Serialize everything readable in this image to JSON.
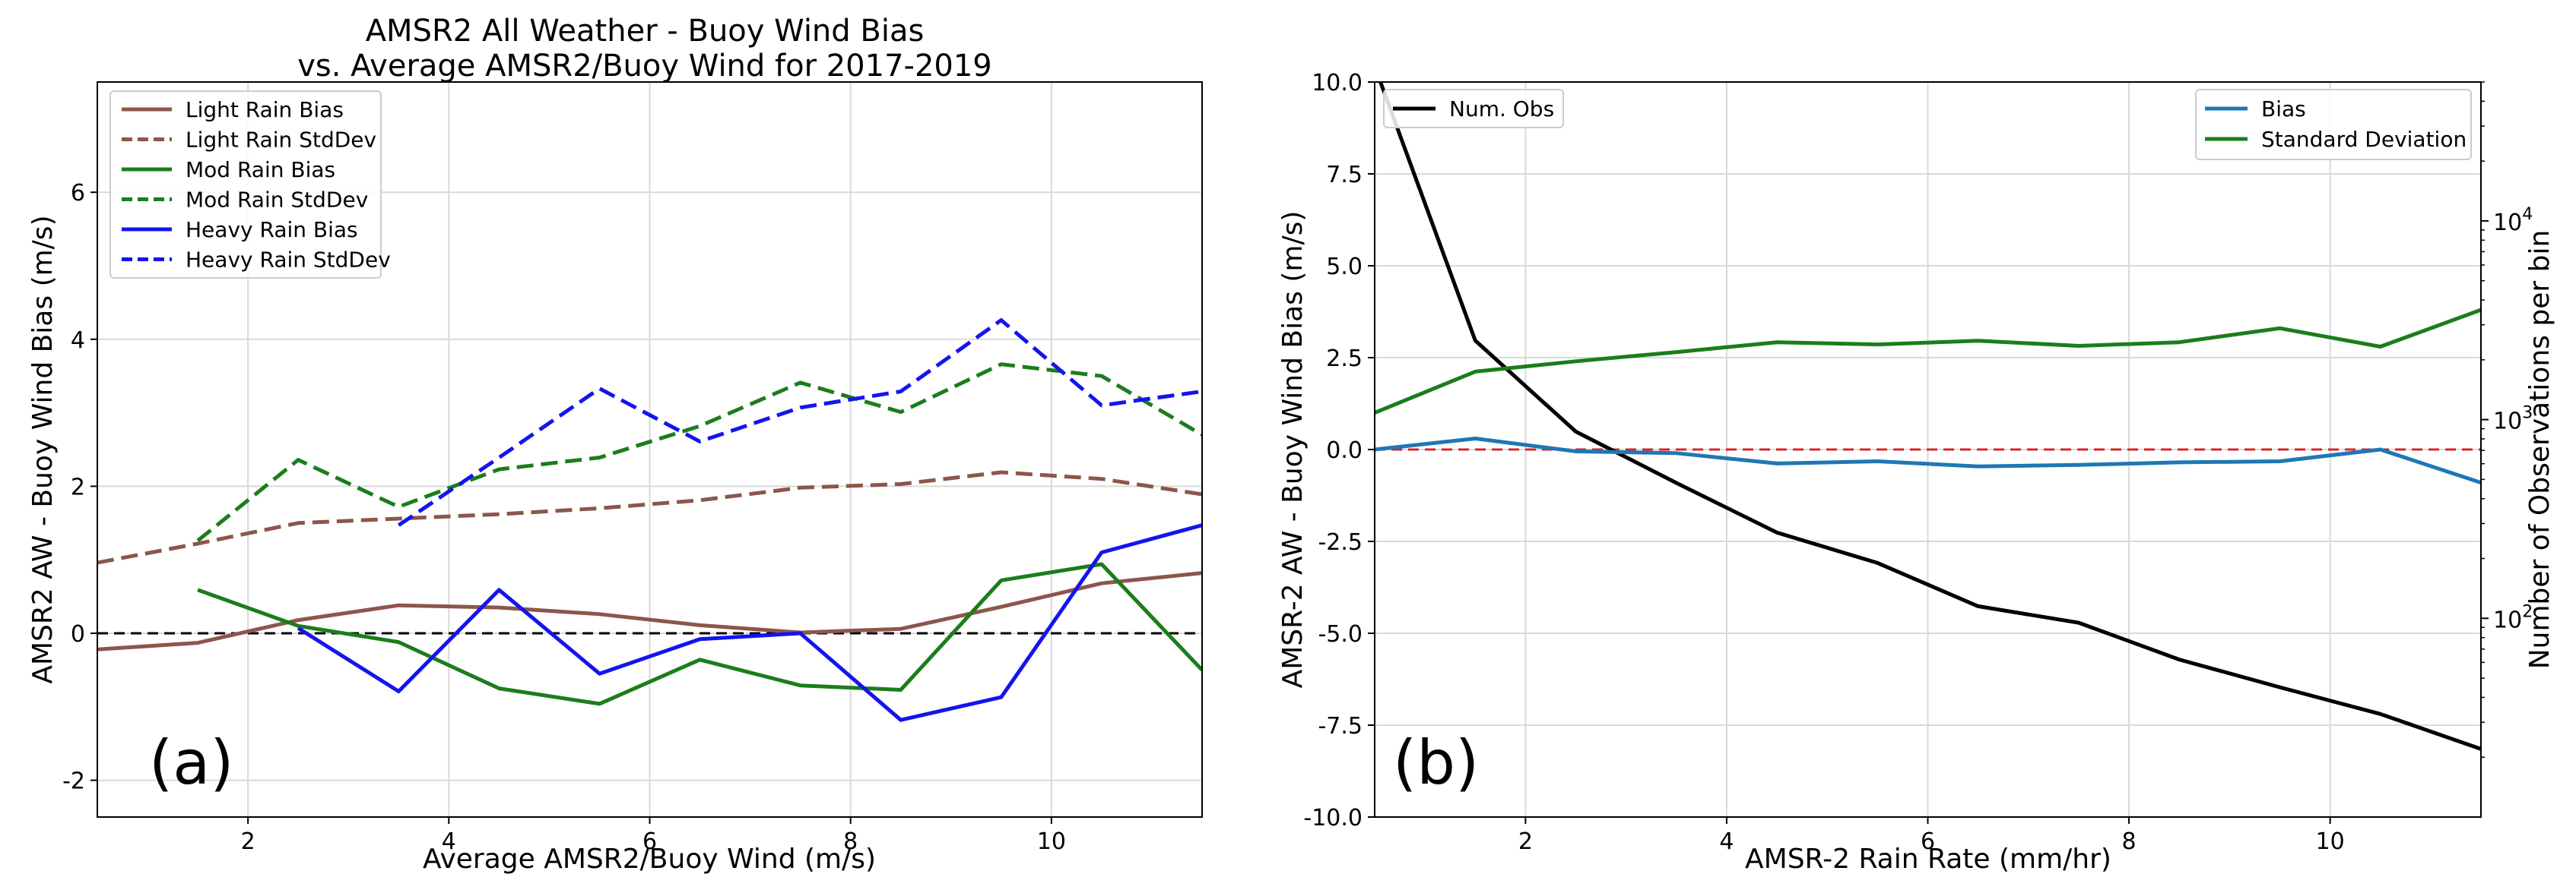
{
  "chart_data": [
    {
      "type": "line",
      "panel_label": "(a)",
      "title_lines": [
        "AMSR2 All Weather - Buoy Wind Bias",
        "vs. Average AMSR2/Buoy Wind for 2017-2019"
      ],
      "xlabel": "Average AMSR2/Buoy Wind (m/s)",
      "ylabel": "AMSR2 AW - Buoy Wind Bias (m/s)",
      "xlim": [
        0.5,
        11.5
      ],
      "ylim": [
        -2.5,
        7.5
      ],
      "xticks": [
        2,
        4,
        6,
        8,
        10
      ],
      "yticks": [
        -2,
        0,
        2,
        4,
        6
      ],
      "grid": true,
      "legend_position": "upper left",
      "reference_line": {
        "y": 0,
        "color": "#000000",
        "style": "dashed"
      },
      "series": [
        {
          "name": "Light Rain Bias",
          "color": "#8c564b",
          "style": "solid",
          "x": [
            0.5,
            1.5,
            2.5,
            3.5,
            4.5,
            5.5,
            6.5,
            7.5,
            8.5,
            9.5,
            10.5,
            11.5
          ],
          "y": [
            -0.22,
            -0.13,
            0.18,
            0.38,
            0.35,
            0.26,
            0.11,
            0.01,
            0.06,
            0.36,
            0.68,
            0.82
          ]
        },
        {
          "name": "Light Rain StdDev",
          "color": "#8c564b",
          "style": "dashed",
          "x": [
            0.5,
            1.5,
            2.5,
            3.5,
            4.5,
            5.5,
            6.5,
            7.5,
            8.5,
            9.5,
            10.5,
            11.5
          ],
          "y": [
            0.96,
            1.22,
            1.5,
            1.56,
            1.62,
            1.7,
            1.81,
            1.98,
            2.03,
            2.19,
            2.1,
            1.89
          ]
        },
        {
          "name": "Mod Rain Bias",
          "color": "#1b7d1b",
          "style": "solid",
          "x": [
            1.5,
            2.5,
            3.5,
            4.5,
            5.5,
            6.5,
            7.5,
            8.5,
            9.5,
            10.5,
            11.5
          ],
          "y": [
            0.59,
            0.1,
            -0.12,
            -0.75,
            -0.96,
            -0.36,
            -0.71,
            -0.77,
            0.72,
            0.94,
            -0.5
          ]
        },
        {
          "name": "Mod Rain StdDev",
          "color": "#1b7d1b",
          "style": "dashed",
          "x": [
            1.5,
            2.5,
            3.5,
            4.5,
            5.5,
            6.5,
            7.5,
            8.5,
            9.5,
            10.5,
            11.5
          ],
          "y": [
            1.26,
            2.36,
            1.72,
            2.23,
            2.39,
            2.82,
            3.41,
            3.01,
            3.66,
            3.5,
            2.7
          ]
        },
        {
          "name": "Heavy Rain Bias",
          "color": "#1414ee",
          "style": "solid",
          "x": [
            2.5,
            3.5,
            4.5,
            5.5,
            6.5,
            7.5,
            8.5,
            9.5,
            10.5,
            11.5
          ],
          "y": [
            0.07,
            -0.79,
            0.59,
            -0.55,
            -0.08,
            0.0,
            -1.18,
            -0.87,
            1.1,
            1.47
          ]
        },
        {
          "name": "Heavy Rain StdDev",
          "color": "#1414ee",
          "style": "dashed",
          "x": [
            3.5,
            4.5,
            5.5,
            6.5,
            7.5,
            8.5,
            9.5,
            10.5,
            11.5
          ],
          "y": [
            1.47,
            2.39,
            3.33,
            2.61,
            3.07,
            3.29,
            4.26,
            3.1,
            3.29
          ]
        }
      ]
    },
    {
      "type": "line",
      "panel_label": "(b)",
      "xlabel": "AMSR-2 Rain Rate (mm/hr)",
      "ylabel": "AMSR-2 AW - Buoy Wind Bias (m/s)",
      "y2label": "Number of Observations per bin",
      "xlim": [
        0.5,
        11.5
      ],
      "ylim": [
        -10,
        10
      ],
      "y2scale": "log",
      "y2lim": [
        10,
        50000
      ],
      "xticks": [
        2,
        4,
        6,
        8,
        10
      ],
      "yticks": [
        "-10.0",
        "-7.5",
        "-5.0",
        "-2.5",
        "0.0",
        "2.5",
        "5.0",
        "7.5",
        "10.0"
      ],
      "y2ticks": [
        {
          "value": 100,
          "base": "10",
          "exp": "2"
        },
        {
          "value": 1000,
          "base": "10",
          "exp": "3"
        },
        {
          "value": 10000,
          "base": "10",
          "exp": "4"
        }
      ],
      "grid": true,
      "legend_left_position": "upper left",
      "legend_right_position": "upper right",
      "reference_line": {
        "y": 0,
        "color": "#d62728",
        "style": "dashed"
      },
      "series": [
        {
          "name": "Bias",
          "color": "#1f77b4",
          "style": "solid",
          "axis": "left",
          "x": [
            0.5,
            1.5,
            2.5,
            3.5,
            4.5,
            5.5,
            6.5,
            7.5,
            8.5,
            9.5,
            10.5,
            11.5
          ],
          "y": [
            0.0,
            0.3,
            -0.05,
            -0.1,
            -0.38,
            -0.32,
            -0.46,
            -0.42,
            -0.35,
            -0.32,
            0.0,
            -0.9
          ]
        },
        {
          "name": "Standard Deviation",
          "color": "#1b7d1b",
          "style": "solid",
          "axis": "left",
          "x": [
            0.5,
            1.5,
            2.5,
            3.5,
            4.5,
            5.5,
            6.5,
            7.5,
            8.5,
            9.5,
            10.5,
            11.5
          ],
          "y": [
            1.0,
            2.12,
            2.4,
            2.65,
            2.92,
            2.86,
            2.96,
            2.82,
            2.92,
            3.3,
            2.8,
            3.8
          ]
        },
        {
          "name": "Num. Obs",
          "color": "#000000",
          "style": "solid",
          "axis": "right",
          "x": [
            0.5,
            1.5,
            2.5,
            3.5,
            4.5,
            5.5,
            6.5,
            7.5,
            8.5,
            9.5,
            10.5,
            11.5
          ],
          "y": [
            60000,
            2500,
            870,
            480,
            270,
            190,
            115,
            95,
            62,
            45,
            33,
            22
          ]
        }
      ]
    }
  ]
}
